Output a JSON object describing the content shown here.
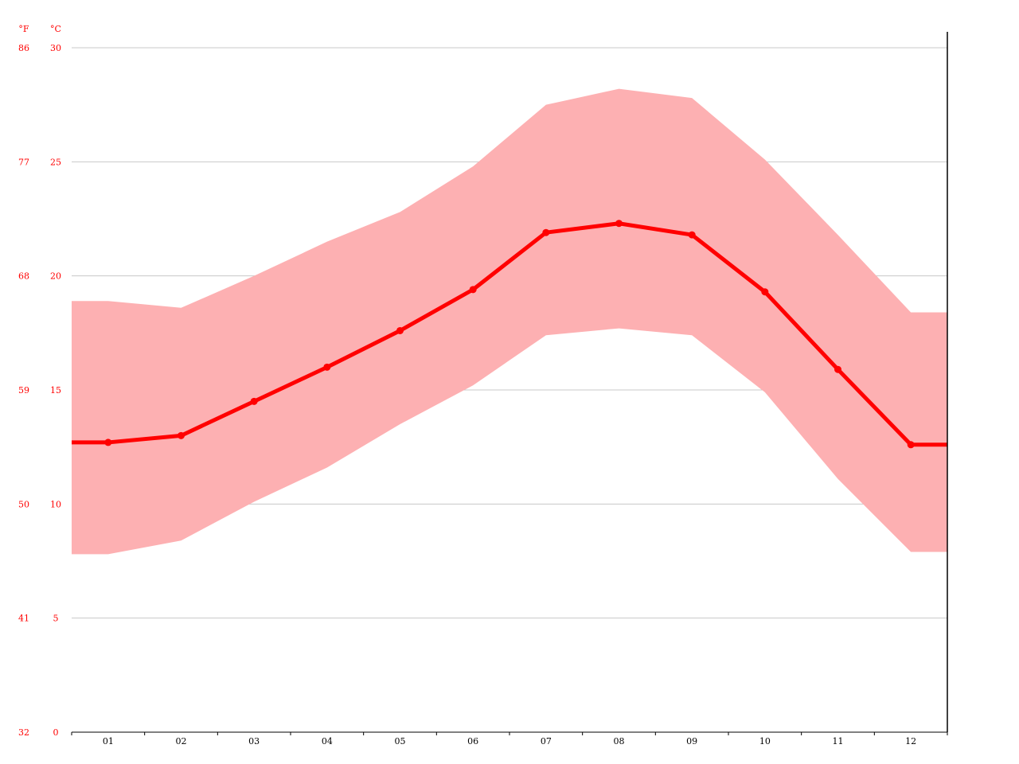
{
  "colors": {
    "line": "#ff0000",
    "band": "#fdb0b2",
    "axis_text": "#ff0000",
    "grid": "#c8c8c8",
    "axis": "#000000"
  },
  "chart_data": {
    "type": "line",
    "title": "",
    "xlabel": "",
    "ylabel": "",
    "units": {
      "fahrenheit": "°F",
      "celsius": "°C"
    },
    "categories": [
      "01",
      "02",
      "03",
      "04",
      "05",
      "06",
      "07",
      "08",
      "09",
      "10",
      "11",
      "12"
    ],
    "ylim": [
      0,
      30
    ],
    "grid": true,
    "y_ticks": [
      {
        "c": "0",
        "f": "32"
      },
      {
        "c": "5",
        "f": "41"
      },
      {
        "c": "10",
        "f": "50"
      },
      {
        "c": "15",
        "f": "59"
      },
      {
        "c": "20",
        "f": "68"
      },
      {
        "c": "25",
        "f": "77"
      },
      {
        "c": "30",
        "f": "86"
      }
    ],
    "series": [
      {
        "values": [
          12.7,
          13.0,
          14.5,
          16.0,
          17.6,
          19.4,
          21.9,
          22.3,
          21.8,
          19.3,
          15.9,
          12.6
        ]
      }
    ],
    "band": {
      "upper": [
        18.9,
        18.6,
        20.0,
        21.5,
        22.8,
        24.8,
        27.5,
        28.2,
        27.8,
        25.1,
        21.8,
        18.4
      ],
      "lower": [
        7.8,
        8.4,
        10.1,
        11.6,
        13.5,
        15.2,
        17.4,
        17.7,
        17.4,
        14.9,
        11.1,
        7.9
      ]
    }
  }
}
